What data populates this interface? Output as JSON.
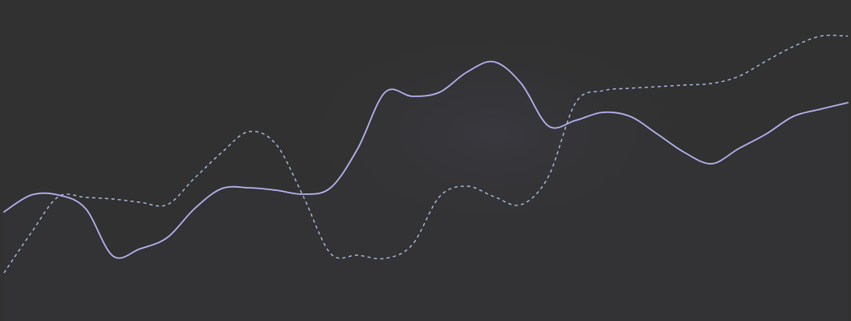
{
  "theme": {
    "background": "#313131",
    "highlight_fill": "#3a3940",
    "series_colors": [
      "#b3b2ef",
      "#a9bfe6"
    ]
  },
  "chart_data": {
    "type": "line",
    "x": [
      0,
      1,
      2,
      3,
      4,
      5,
      6,
      7,
      8,
      9,
      10,
      11,
      12,
      13,
      14,
      15,
      16,
      17,
      18,
      19,
      20,
      21,
      22,
      23,
      24,
      25,
      26,
      27,
      28,
      29,
      30,
      31
    ],
    "ylim": [
      0,
      400
    ],
    "grid": false,
    "legend": "none",
    "series": [
      {
        "style": "solid",
        "values": [
          136,
          157,
          157,
          140,
          81,
          90,
          104,
          140,
          165,
          166,
          163,
          158,
          166,
          215,
          285,
          280,
          285,
          310,
          323,
          296,
          243,
          250,
          260,
          255,
          233,
          210,
          196,
          215,
          233,
          255,
          264,
          272
        ]
      },
      {
        "style": "dashed",
        "values": [
          60,
          110,
          155,
          154,
          152,
          148,
          145,
          178,
          210,
          236,
          220,
          155,
          84,
          82,
          78,
          95,
          155,
          168,
          155,
          145,
          180,
          272,
          287,
          290,
          292,
          294,
          296,
          305,
          324,
          342,
          355,
          355
        ]
      }
    ]
  }
}
